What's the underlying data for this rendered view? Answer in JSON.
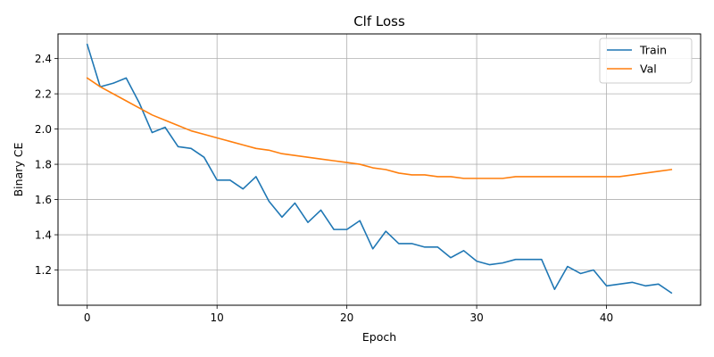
{
  "chart_data": {
    "type": "line",
    "title": "Clf Loss",
    "xlabel": "Epoch",
    "ylabel": "Binary CE",
    "xlim": [
      -2.25,
      47.25
    ],
    "ylim": [
      1.0,
      2.54
    ],
    "xticks": [
      0,
      10,
      20,
      30,
      40
    ],
    "xtick_labels": [
      "0",
      "10",
      "20",
      "30",
      "40"
    ],
    "yticks": [
      1.2,
      1.4,
      1.6,
      1.8,
      2.0,
      2.2,
      2.4
    ],
    "ytick_labels": [
      "1.2",
      "1.4",
      "1.6",
      "1.8",
      "2.0",
      "2.2",
      "2.4"
    ],
    "grid": true,
    "legend_position": "top-right",
    "x": [
      0,
      1,
      2,
      3,
      4,
      5,
      6,
      7,
      8,
      9,
      10,
      11,
      12,
      13,
      14,
      15,
      16,
      17,
      18,
      19,
      20,
      21,
      22,
      23,
      24,
      25,
      26,
      27,
      28,
      29,
      30,
      31,
      32,
      33,
      34,
      35,
      36,
      37,
      38,
      39,
      40,
      41,
      42,
      43,
      44,
      45
    ],
    "series": [
      {
        "name": "Train",
        "color": "#1f77b4",
        "values": [
          2.48,
          2.24,
          2.26,
          2.29,
          2.15,
          1.98,
          2.01,
          1.9,
          1.89,
          1.84,
          1.71,
          1.71,
          1.66,
          1.73,
          1.59,
          1.5,
          1.58,
          1.47,
          1.54,
          1.43,
          1.43,
          1.48,
          1.32,
          1.42,
          1.35,
          1.35,
          1.33,
          1.33,
          1.27,
          1.31,
          1.25,
          1.23,
          1.24,
          1.26,
          1.26,
          1.26,
          1.09,
          1.22,
          1.18,
          1.2,
          1.11,
          1.12,
          1.13,
          1.11,
          1.12,
          1.07
        ]
      },
      {
        "name": "Val",
        "color": "#ff7f0e",
        "values": [
          2.29,
          2.24,
          2.2,
          2.16,
          2.12,
          2.08,
          2.05,
          2.02,
          1.99,
          1.97,
          1.95,
          1.93,
          1.91,
          1.89,
          1.88,
          1.86,
          1.85,
          1.84,
          1.83,
          1.82,
          1.81,
          1.8,
          1.78,
          1.77,
          1.75,
          1.74,
          1.74,
          1.73,
          1.73,
          1.72,
          1.72,
          1.72,
          1.72,
          1.73,
          1.73,
          1.73,
          1.73,
          1.73,
          1.73,
          1.73,
          1.73,
          1.73,
          1.74,
          1.75,
          1.76,
          1.77
        ]
      }
    ]
  }
}
